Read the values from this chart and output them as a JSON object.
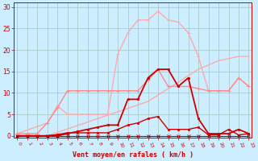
{
  "xlabel": "Vent moyen/en rafales ( km/h )",
  "background_color": "#cceeff",
  "grid_color": "#aacccc",
  "x_ticks": [
    0,
    1,
    2,
    3,
    4,
    5,
    6,
    7,
    8,
    9,
    10,
    11,
    12,
    13,
    14,
    15,
    16,
    17,
    18,
    19,
    20,
    21,
    22,
    23
  ],
  "y_ticks": [
    0,
    5,
    10,
    15,
    20,
    25,
    30
  ],
  "ylim": [
    -0.5,
    31
  ],
  "xlim": [
    -0.3,
    23.3
  ],
  "line_top_x": [
    0,
    3,
    4,
    5,
    6,
    7,
    8,
    9,
    10,
    11,
    12,
    13,
    14,
    15,
    16,
    17,
    18,
    19,
    20,
    21,
    22,
    23
  ],
  "line_top_y": [
    0.5,
    3.0,
    7.0,
    5.0,
    5.0,
    5.0,
    5.0,
    5.0,
    19.0,
    24.0,
    27.0,
    27.0,
    29.0,
    27.0,
    26.5,
    24.0,
    18.5,
    10.5,
    10.5,
    10.5,
    13.5,
    11.5
  ],
  "line_top_color": "#ffaaaa",
  "line_diag_x": [
    0,
    1,
    2,
    3,
    4,
    5,
    6,
    7,
    8,
    9,
    10,
    11,
    12,
    13,
    14,
    15,
    16,
    17,
    18,
    19,
    20,
    21,
    22,
    23
  ],
  "line_diag_y": [
    0,
    0,
    0,
    0,
    0.8,
    1.6,
    2.4,
    3.2,
    4.0,
    4.8,
    5.6,
    6.4,
    7.2,
    8.0,
    9.5,
    11.0,
    12.5,
    14.0,
    15.5,
    16.5,
    17.5,
    18.0,
    18.5,
    18.5
  ],
  "line_diag_color": "#ffaaaa",
  "line_flat_x": [
    0,
    1,
    2,
    3,
    4,
    5,
    6,
    7,
    8,
    9,
    10,
    11,
    12,
    13,
    14,
    15,
    16,
    17,
    18,
    19,
    20,
    21,
    22,
    23
  ],
  "line_flat_y": [
    0.5,
    0.5,
    0.5,
    3.0,
    6.5,
    10.5,
    10.5,
    10.5,
    10.5,
    10.5,
    10.5,
    10.5,
    10.5,
    13.0,
    15.5,
    11.5,
    11.5,
    11.5,
    11.0,
    10.5,
    10.5,
    10.5,
    13.5,
    11.5
  ],
  "line_flat_color": "#ff8888",
  "line_mid_x": [
    0,
    1,
    2,
    3,
    4,
    5,
    6,
    7,
    8,
    9,
    10,
    11,
    12,
    13,
    14,
    15,
    16,
    17,
    18,
    19,
    20,
    21,
    22,
    23
  ],
  "line_mid_y": [
    0,
    0,
    0,
    0,
    0,
    0.5,
    1.0,
    1.5,
    2.0,
    2.5,
    2.5,
    8.5,
    8.5,
    13.5,
    15.5,
    15.5,
    11.5,
    13.5,
    4.0,
    0.5,
    0.5,
    0.5,
    1.5,
    0.5
  ],
  "line_mid_color": "#cc0000",
  "line_low_x": [
    0,
    1,
    2,
    3,
    4,
    5,
    6,
    7,
    8,
    9,
    10,
    11,
    12,
    13,
    14,
    15,
    16,
    17,
    18,
    19,
    20,
    21,
    22,
    23
  ],
  "line_low_y": [
    0,
    0,
    0,
    0,
    0.3,
    0.7,
    0.7,
    0.7,
    0.7,
    0.7,
    1.5,
    2.5,
    3.0,
    4.0,
    4.5,
    1.5,
    1.5,
    1.5,
    2.0,
    0.2,
    0.2,
    1.5,
    0.2,
    0.5
  ],
  "line_low_color": "#cc0000",
  "line_zero_x": [
    0,
    1,
    2,
    3,
    4,
    5,
    6,
    7,
    8,
    9,
    10,
    11,
    12,
    13,
    14,
    15,
    16,
    17,
    18,
    19,
    20,
    21,
    22,
    23
  ],
  "line_zero_y": [
    0,
    0,
    0,
    0,
    0,
    0,
    0,
    0,
    0,
    0,
    0,
    0,
    0,
    0,
    0,
    0,
    0,
    0,
    0,
    0,
    0,
    0,
    0,
    0
  ],
  "line_zero_color": "#aa0000"
}
